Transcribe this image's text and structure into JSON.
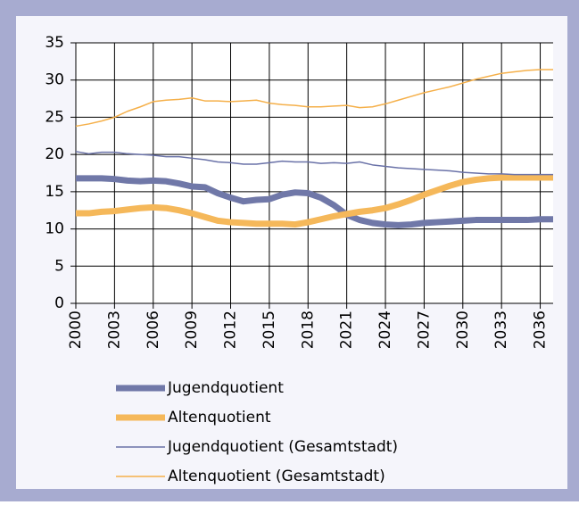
{
  "chart_data": {
    "type": "line",
    "x": [
      2000,
      2001,
      2002,
      2003,
      2004,
      2005,
      2006,
      2007,
      2008,
      2009,
      2010,
      2011,
      2012,
      2013,
      2014,
      2015,
      2016,
      2017,
      2018,
      2019,
      2020,
      2021,
      2022,
      2023,
      2024,
      2025,
      2026,
      2027,
      2028,
      2029,
      2030,
      2031,
      2032,
      2033,
      2034,
      2035,
      2036,
      2037
    ],
    "xlim": [
      2000,
      2037
    ],
    "xticks": [
      2000,
      2003,
      2006,
      2009,
      2012,
      2015,
      2018,
      2021,
      2024,
      2027,
      2030,
      2033,
      2036
    ],
    "ylim": [
      0,
      35
    ],
    "yticks": [
      0,
      5,
      10,
      15,
      20,
      25,
      30,
      35
    ],
    "grid": true,
    "series": [
      {
        "name": "Jugendquotient",
        "color": "#7078a8",
        "width": 7,
        "values": [
          16.8,
          16.8,
          16.8,
          16.7,
          16.5,
          16.4,
          16.5,
          16.4,
          16.1,
          15.7,
          15.6,
          14.8,
          14.2,
          13.7,
          13.9,
          14.0,
          14.6,
          14.9,
          14.8,
          14.2,
          13.2,
          11.9,
          11.2,
          10.8,
          10.6,
          10.5,
          10.6,
          10.8,
          10.9,
          11.0,
          11.1,
          11.2,
          11.2,
          11.2,
          11.2,
          11.2,
          11.3,
          11.3
        ]
      },
      {
        "name": "Altenquotient",
        "color": "#f5b85a",
        "width": 7,
        "values": [
          12.1,
          12.1,
          12.3,
          12.4,
          12.6,
          12.8,
          12.9,
          12.8,
          12.5,
          12.1,
          11.6,
          11.1,
          10.9,
          10.8,
          10.7,
          10.7,
          10.7,
          10.6,
          10.9,
          11.3,
          11.7,
          12.0,
          12.3,
          12.5,
          12.8,
          13.3,
          13.9,
          14.6,
          15.2,
          15.8,
          16.3,
          16.6,
          16.8,
          16.9,
          16.9,
          16.9,
          16.9,
          16.9
        ]
      },
      {
        "name": "Jugendquotient (Gesamtstadt)",
        "color": "#6a72a8",
        "width": 1.5,
        "values": [
          20.4,
          20.1,
          20.3,
          20.3,
          20.1,
          20.0,
          19.9,
          19.7,
          19.7,
          19.5,
          19.3,
          19.0,
          18.9,
          18.7,
          18.7,
          18.9,
          19.1,
          19.0,
          19.0,
          18.8,
          18.9,
          18.8,
          19.0,
          18.6,
          18.4,
          18.2,
          18.1,
          18.0,
          17.9,
          17.8,
          17.6,
          17.5,
          17.4,
          17.4,
          17.3,
          17.3,
          17.3,
          17.3
        ]
      },
      {
        "name": "Altenquotient (Gesamtstadt)",
        "color": "#f5b04a",
        "width": 1.5,
        "values": [
          23.8,
          24.1,
          24.5,
          25.0,
          25.8,
          26.4,
          27.1,
          27.3,
          27.4,
          27.6,
          27.2,
          27.2,
          27.1,
          27.2,
          27.3,
          26.9,
          26.7,
          26.6,
          26.4,
          26.4,
          26.5,
          26.6,
          26.3,
          26.4,
          26.8,
          27.3,
          27.8,
          28.3,
          28.7,
          29.1,
          29.6,
          30.1,
          30.5,
          30.9,
          31.1,
          31.3,
          31.4,
          31.4
        ]
      }
    ]
  }
}
